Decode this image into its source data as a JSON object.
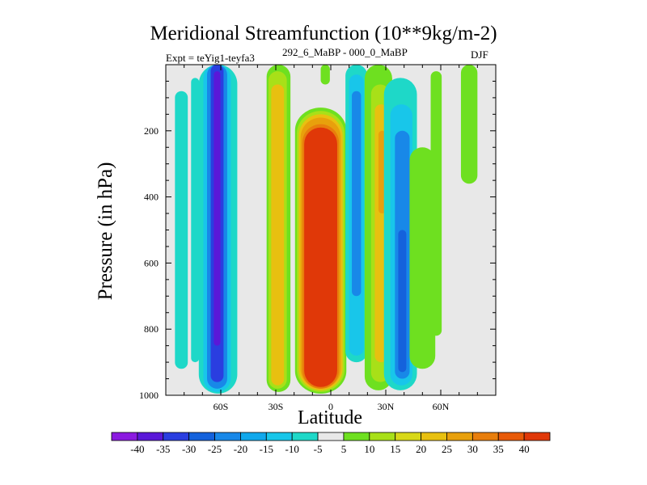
{
  "chart_data": {
    "type": "heatmap",
    "title": "Meridional Streamfunction (10**9kg/m-2)",
    "subtitle_left": "Expt = teYig1-teyfa3",
    "subtitle_mid": "292_6_MaBP - 000_0_MaBP",
    "subtitle_right": "DJF",
    "xlabel": "Latitude",
    "ylabel": "Pressure (in hPa)",
    "xlim": [
      -90,
      90
    ],
    "ylim": [
      1000,
      0
    ],
    "x_ticks": [
      {
        "value": -60,
        "label": "60S"
      },
      {
        "value": -30,
        "label": "30S"
      },
      {
        "value": 0,
        "label": "0"
      },
      {
        "value": 30,
        "label": "30N"
      },
      {
        "value": 60,
        "label": "60N"
      }
    ],
    "y_ticks": [
      {
        "value": 200,
        "label": "200"
      },
      {
        "value": 400,
        "label": "400"
      },
      {
        "value": 600,
        "label": "600"
      },
      {
        "value": 800,
        "label": "800"
      },
      {
        "value": 1000,
        "label": "1000"
      }
    ],
    "colorbar": {
      "labels": [
        "-40",
        "-35",
        "-30",
        "-25",
        "-20",
        "-15",
        "-10",
        "-5",
        "5",
        "10",
        "15",
        "20",
        "25",
        "30",
        "35",
        "40"
      ],
      "colors": [
        "#8b1ae0",
        "#5a18d8",
        "#2a3ee0",
        "#1462dc",
        "#1888e8",
        "#10a8ec",
        "#18c6ea",
        "#1ed8c8",
        "#e8e8e8",
        "#6ee020",
        "#a8e018",
        "#d8d818",
        "#e8c010",
        "#e8a00c",
        "#e87e0c",
        "#e85a08",
        "#e03808"
      ]
    },
    "features": [
      {
        "label": "Southern polar negative cells",
        "latitudes": [
          -84,
          -77
        ],
        "pressure": [
          80,
          920
        ],
        "value": -5
      },
      {
        "label": "Deep negative cell 60S",
        "latitudes": [
          -70,
          -54
        ],
        "pressure": [
          0,
          990
        ],
        "value": -40
      },
      {
        "label": "Positive band 30S",
        "latitudes": [
          -35,
          -22
        ],
        "pressure": [
          0,
          990
        ],
        "value": 20
      },
      {
        "label": "Equatorial maximum",
        "latitudes": [
          -19,
          9
        ],
        "pressure": [
          130,
          990
        ],
        "value": 40
      },
      {
        "label": "Negative band 12N",
        "latitudes": [
          8,
          20
        ],
        "pressure": [
          0,
          900
        ],
        "value": -30
      },
      {
        "label": "Positive band 28N",
        "latitudes": [
          18,
          34
        ],
        "pressure": [
          0,
          980
        ],
        "value": 25
      },
      {
        "label": "Negative cell 38N",
        "latitudes": [
          28,
          48
        ],
        "pressure": [
          50,
          980
        ],
        "value": -30
      },
      {
        "label": "Northern positive band",
        "latitudes": [
          40,
          66
        ],
        "pressure": [
          20,
          900
        ],
        "value": 5
      },
      {
        "label": "Northern high-latitude positive",
        "latitudes": [
          70,
          81
        ],
        "pressure": [
          0,
          360
        ],
        "value": 10
      }
    ]
  }
}
